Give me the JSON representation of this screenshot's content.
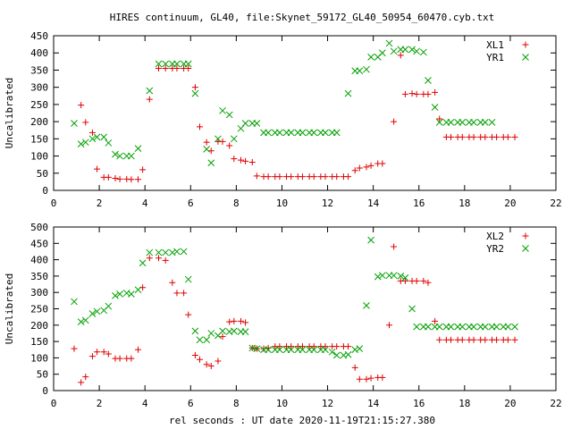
{
  "figure": {
    "title": "HIRES continuum, GL40, file:Skynet_59172_GL40_50954_60470.cyb.txt",
    "xlabel": "rel seconds : UT date 2020-11-19T21:15:27.380"
  },
  "colors": {
    "red": "#e00000",
    "green": "#00a000",
    "axis": "#000000",
    "grid": "#a0a0a0"
  },
  "chart_data": [
    {
      "type": "scatter",
      "ylabel": "Uncalibrated",
      "xlim": [
        0,
        22
      ],
      "ylim": [
        0,
        450
      ],
      "xticks": [
        0,
        2,
        4,
        6,
        8,
        10,
        12,
        14,
        16,
        18,
        20,
        22
      ],
      "yticks": [
        0,
        50,
        100,
        150,
        200,
        250,
        300,
        350,
        400,
        450
      ],
      "grid": true,
      "legend_position": "top-right",
      "x": [
        0.9,
        1.2,
        1.4,
        1.7,
        1.9,
        2.2,
        2.4,
        2.7,
        2.9,
        3.2,
        3.4,
        3.7,
        3.9,
        4.2,
        4.6,
        4.9,
        5.2,
        5.4,
        5.7,
        5.9,
        6.2,
        6.4,
        6.7,
        6.9,
        7.2,
        7.4,
        7.7,
        7.9,
        8.2,
        8.4,
        8.7,
        8.9,
        9.2,
        9.4,
        9.7,
        9.9,
        10.2,
        10.4,
        10.7,
        10.9,
        11.2,
        11.4,
        11.7,
        11.9,
        12.2,
        12.4,
        12.7,
        12.9,
        13.2,
        13.4,
        13.7,
        13.9,
        14.2,
        14.4,
        14.7,
        14.9,
        15.2,
        15.4,
        15.7,
        15.9,
        16.2,
        16.4,
        16.7,
        16.9,
        17.2,
        17.4,
        17.7,
        17.9,
        18.2,
        18.4,
        18.7,
        18.9,
        19.2,
        19.4,
        19.7,
        19.9,
        20.2
      ],
      "series": [
        {
          "name": "XL1",
          "marker": "plus",
          "color": "#e00000",
          "values": [
            null,
            248,
            198,
            168,
            62,
            38,
            38,
            35,
            33,
            33,
            32,
            32,
            60,
            265,
            355,
            355,
            355,
            355,
            355,
            355,
            300,
            185,
            140,
            115,
            142,
            142,
            130,
            92,
            88,
            85,
            82,
            42,
            40,
            40,
            40,
            40,
            40,
            40,
            40,
            40,
            40,
            40,
            40,
            40,
            40,
            40,
            40,
            40,
            58,
            65,
            68,
            72,
            78,
            78,
            null,
            200,
            393,
            280,
            282,
            280,
            280,
            280,
            285,
            208,
            155,
            155,
            155,
            155,
            155,
            155,
            155,
            155,
            155,
            155,
            155,
            155,
            155
          ],
          "x": [
            0.9,
            1.2,
            1.4,
            1.7,
            1.9,
            2.2,
            2.4,
            2.7,
            2.9,
            3.2,
            3.4,
            3.7,
            3.9,
            4.2,
            4.6,
            4.9,
            5.2,
            5.4,
            5.7,
            5.9,
            6.2,
            6.4,
            6.7,
            6.9,
            7.2,
            7.4,
            7.7,
            7.9,
            8.2,
            8.4,
            8.7,
            8.9,
            9.2,
            9.4,
            9.7,
            9.9,
            10.2,
            10.4,
            10.7,
            10.9,
            11.2,
            11.4,
            11.7,
            11.9,
            12.2,
            12.4,
            12.7,
            12.9,
            13.2,
            13.4,
            13.7,
            13.9,
            14.2,
            14.4,
            14.7,
            14.9,
            15.2,
            15.4,
            15.7,
            15.9,
            16.2,
            16.4,
            16.7,
            16.9,
            17.2,
            17.4,
            17.7,
            17.9,
            18.2,
            18.4,
            18.7,
            18.9,
            19.2,
            19.4,
            19.7,
            19.9,
            20.2
          ]
        },
        {
          "name": "YR1",
          "marker": "cross",
          "color": "#00a000",
          "values": [
            195,
            135,
            140,
            150,
            155,
            155,
            138,
            105,
            100,
            100,
            100,
            122,
            290,
            368,
            368,
            368,
            368,
            368,
            368,
            282,
            120,
            80,
            150,
            232,
            220,
            150,
            180,
            195,
            195,
            195,
            168,
            168,
            168,
            168,
            168,
            168,
            168,
            168,
            168,
            168,
            168,
            168,
            168,
            168,
            282,
            348,
            348,
            352,
            388,
            388,
            400,
            428,
            405,
            410,
            410,
            410,
            405,
            402,
            320,
            242,
            198,
            198,
            198,
            198,
            198,
            198,
            198,
            198,
            198,
            198
          ],
          "x": [
            0.9,
            1.2,
            1.4,
            1.7,
            1.9,
            2.2,
            2.4,
            2.7,
            2.9,
            3.2,
            3.4,
            3.7,
            4.2,
            4.6,
            4.9,
            5.2,
            5.4,
            5.7,
            5.9,
            6.2,
            6.7,
            6.9,
            7.2,
            7.4,
            7.7,
            7.9,
            8.2,
            8.4,
            8.7,
            8.9,
            9.2,
            9.4,
            9.7,
            9.9,
            10.2,
            10.4,
            10.7,
            10.9,
            11.2,
            11.4,
            11.7,
            11.9,
            12.2,
            12.4,
            12.9,
            13.2,
            13.4,
            13.7,
            13.9,
            14.2,
            14.4,
            14.7,
            14.9,
            15.2,
            15.4,
            15.7,
            15.9,
            16.2,
            16.4,
            16.7,
            16.9,
            17.2,
            17.4,
            17.7,
            17.9,
            18.2,
            18.4,
            18.7,
            18.9,
            19.2
          ]
        }
      ]
    },
    {
      "type": "scatter",
      "ylabel": "Uncalibrated",
      "xlim": [
        0,
        22
      ],
      "ylim": [
        0,
        500
      ],
      "xticks": [
        0,
        2,
        4,
        6,
        8,
        10,
        12,
        14,
        16,
        18,
        20,
        22
      ],
      "yticks": [
        0,
        50,
        100,
        150,
        200,
        250,
        300,
        350,
        400,
        450,
        500
      ],
      "grid": true,
      "legend_position": "top-right",
      "series": [
        {
          "name": "XL2",
          "marker": "plus",
          "color": "#e00000",
          "x": [
            0.9,
            1.2,
            1.4,
            1.7,
            1.9,
            2.2,
            2.4,
            2.7,
            2.9,
            3.2,
            3.4,
            3.7,
            3.9,
            4.2,
            4.6,
            4.9,
            5.2,
            5.4,
            5.7,
            5.9,
            6.2,
            6.4,
            6.7,
            6.9,
            7.2,
            7.4,
            7.7,
            7.9,
            8.2,
            8.4,
            8.7,
            8.9,
            9.2,
            9.4,
            9.7,
            9.9,
            10.2,
            10.4,
            10.7,
            10.9,
            11.2,
            11.4,
            11.7,
            11.9,
            12.2,
            12.4,
            12.7,
            12.9,
            13.2,
            13.4,
            13.7,
            13.9,
            14.2,
            14.4,
            14.7,
            14.9,
            15.2,
            15.4,
            15.7,
            15.9,
            16.2,
            16.4,
            16.7,
            16.9,
            17.2,
            17.4,
            17.7,
            17.9,
            18.2,
            18.4,
            18.7,
            18.9,
            19.2,
            19.4,
            19.7,
            19.9,
            20.2
          ],
          "values": [
            128,
            25,
            42,
            105,
            118,
            118,
            112,
            98,
            98,
            98,
            98,
            125,
            315,
            405,
            405,
            398,
            330,
            298,
            298,
            232,
            108,
            95,
            80,
            75,
            90,
            165,
            210,
            212,
            212,
            208,
            130,
            128,
            128,
            130,
            135,
            135,
            135,
            135,
            135,
            135,
            135,
            135,
            135,
            135,
            135,
            135,
            135,
            135,
            70,
            35,
            35,
            38,
            40,
            40,
            200,
            440,
            335,
            335,
            335,
            335,
            335,
            330,
            212,
            155,
            155,
            155,
            155,
            155,
            155,
            155,
            155,
            155,
            155,
            155,
            155,
            155,
            155
          ]
        },
        {
          "name": "YR2",
          "marker": "cross",
          "color": "#00a000",
          "x": [
            0.9,
            1.2,
            1.4,
            1.7,
            1.9,
            2.2,
            2.4,
            2.7,
            2.9,
            3.2,
            3.4,
            3.7,
            3.9,
            4.2,
            4.6,
            4.9,
            5.2,
            5.4,
            5.7,
            5.9,
            6.2,
            6.4,
            6.7,
            6.9,
            7.2,
            7.4,
            7.7,
            7.9,
            8.2,
            8.4,
            8.7,
            8.9,
            9.2,
            9.4,
            9.7,
            9.9,
            10.2,
            10.4,
            10.7,
            10.9,
            11.2,
            11.4,
            11.7,
            11.9,
            12.2,
            12.4,
            12.7,
            12.9,
            13.2,
            13.4,
            13.7,
            13.9,
            14.2,
            14.4,
            14.7,
            14.9,
            15.2,
            15.4,
            15.7,
            15.9,
            16.2,
            16.4,
            16.7,
            16.9,
            17.2,
            17.4,
            17.7,
            17.9,
            18.2,
            18.4,
            18.7,
            18.9,
            19.2,
            19.4,
            19.7,
            19.9,
            20.2
          ],
          "values": [
            272,
            210,
            215,
            235,
            242,
            245,
            258,
            290,
            295,
            298,
            295,
            308,
            390,
            422,
            422,
            422,
            422,
            425,
            425,
            340,
            182,
            155,
            155,
            175,
            168,
            182,
            180,
            182,
            180,
            180,
            130,
            128,
            125,
            125,
            125,
            125,
            125,
            125,
            125,
            125,
            125,
            125,
            125,
            125,
            118,
            108,
            108,
            110,
            125,
            128,
            260,
            460,
            348,
            352,
            352,
            352,
            350,
            345,
            250,
            195,
            195,
            195,
            195,
            195,
            195,
            195,
            195,
            195,
            195,
            195,
            195,
            195,
            195,
            195,
            195,
            195,
            195
          ]
        }
      ]
    }
  ]
}
